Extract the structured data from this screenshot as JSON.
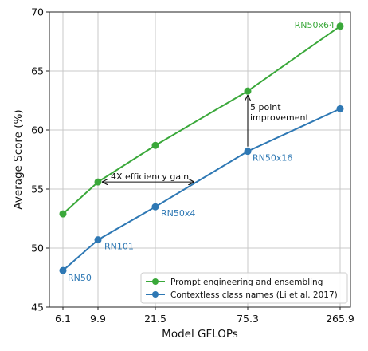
{
  "chart_data": {
    "type": "line",
    "xlabel": "Model GFLOPs",
    "ylabel": "Average Score (%)",
    "x_scale": "categorical",
    "categories": [
      "6.1",
      "9.9",
      "21.5",
      "75.3",
      "265.9"
    ],
    "ylim": [
      45,
      70
    ],
    "yticks": [
      "45",
      "50",
      "55",
      "60",
      "65",
      "70"
    ],
    "grid": true,
    "legend_position": "lower right",
    "series": [
      {
        "name": "Prompt engineering and ensembling",
        "color": "#3aa83a",
        "values": [
          52.9,
          55.6,
          58.7,
          63.3,
          68.8
        ]
      },
      {
        "name": "Contextless class names (Li et al. 2017)",
        "color": "#2e78b4",
        "values": [
          48.1,
          50.7,
          53.5,
          58.2,
          61.8
        ]
      }
    ],
    "point_labels": [
      {
        "text": "RN50",
        "series": 1,
        "index": 0,
        "color": "#2e78b4"
      },
      {
        "text": "RN101",
        "series": 1,
        "index": 1,
        "color": "#2e78b4"
      },
      {
        "text": "RN50x4",
        "series": 1,
        "index": 2,
        "color": "#2e78b4"
      },
      {
        "text": "RN50x16",
        "series": 1,
        "index": 3,
        "color": "#2e78b4"
      },
      {
        "text": "RN50x64",
        "series": 0,
        "index": 4,
        "color": "#3aa83a"
      }
    ],
    "annotations": {
      "efficiency": {
        "text": "4X efficiency gain",
        "y": 55.6
      },
      "improvement": {
        "text_lines": [
          "5 point",
          "improvement"
        ],
        "y_from": 58.2,
        "y_to": 63.3
      }
    }
  }
}
